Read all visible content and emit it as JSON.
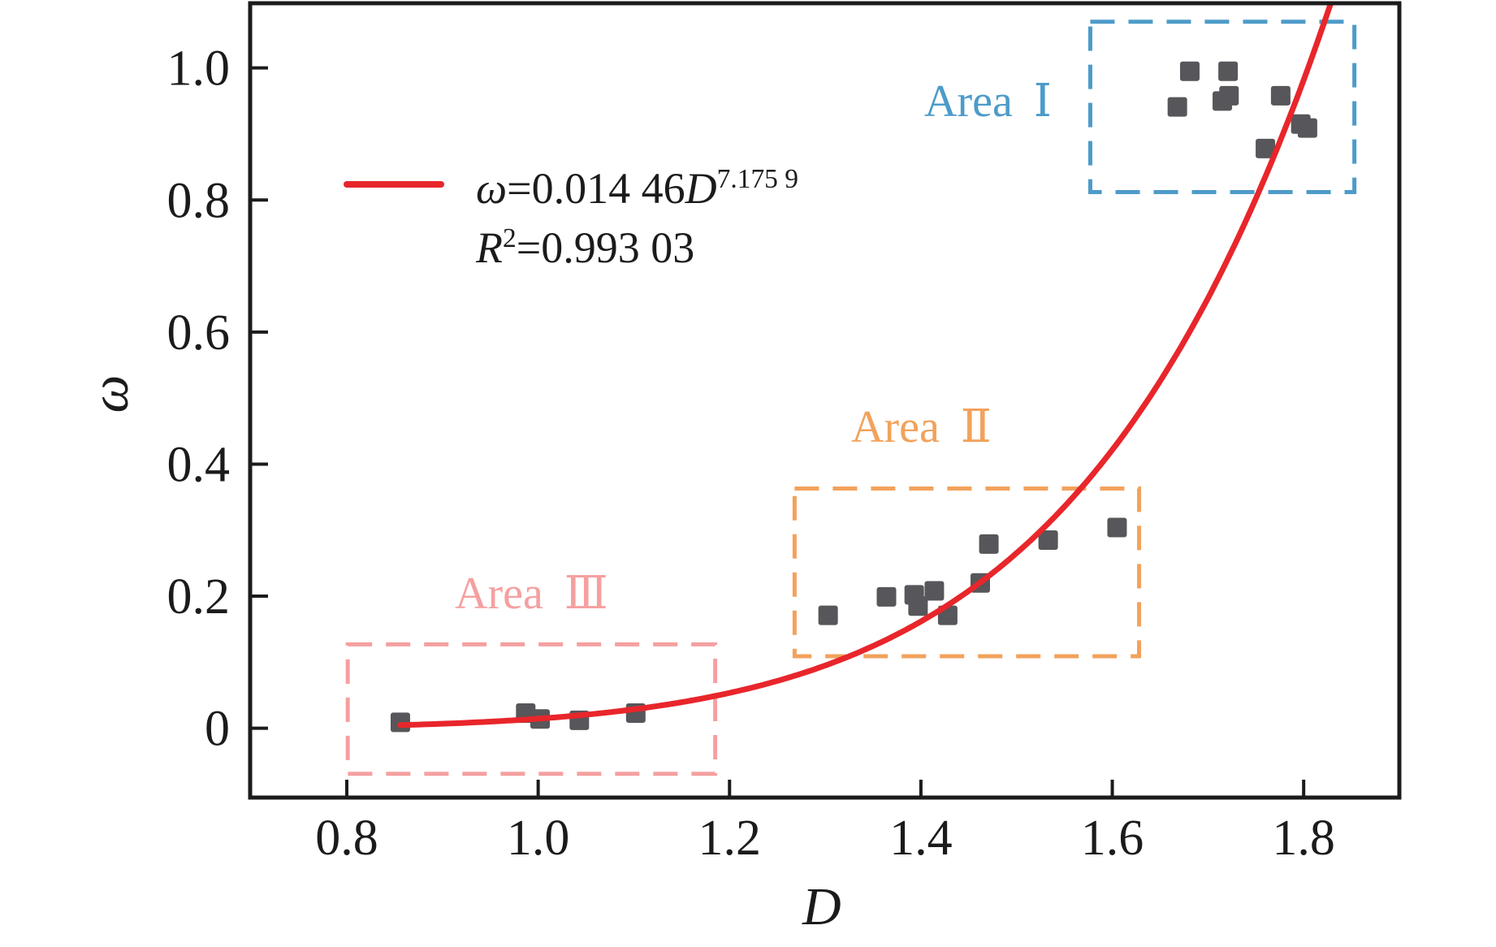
{
  "figure": {
    "background": "#ffffff",
    "frame_color": "#1b1b1b",
    "text_color": "#1b1b1b"
  },
  "legend": {
    "swatch_color": "#e8262b",
    "omega_symbol": "ω",
    "equation_mid": "=0.014 46",
    "d_symbol": "D",
    "equation_exponent": "7.175 9",
    "r_symbol": "R",
    "r_superscript": "2",
    "r_value": "=0.993 03"
  },
  "axis_titles": {
    "x": "D",
    "y": "ω"
  },
  "area_labels": [
    {
      "label": "Area Ⅰ",
      "color": "#4d9bc9"
    },
    {
      "label": "Area Ⅱ",
      "color": "#f2a25c"
    },
    {
      "label": "Area Ⅲ",
      "color": "#f5a0a0"
    }
  ],
  "chart_data": {
    "type": "scatter",
    "title": "",
    "xlabel": "D",
    "ylabel": "ω",
    "xlim": [
      0.699,
      1.9
    ],
    "ylim": [
      -0.105,
      1.098
    ],
    "xticks": [
      0.8,
      1.0,
      1.2,
      1.4,
      1.6,
      1.8
    ],
    "xtick_labels": [
      "0.8",
      "1.0",
      "1.2",
      "1.4",
      "1.6",
      "1.8"
    ],
    "yticks": [
      0,
      0.2,
      0.4,
      0.6,
      0.8,
      1.0
    ],
    "ytick_labels": [
      "0",
      "0.2",
      "0.4",
      "0.6",
      "0.8",
      "1.0"
    ],
    "grid": false,
    "legend_position": "upper-left-inside",
    "marker": {
      "shape": "square",
      "color": "#57565a",
      "size": 24
    },
    "fit_curve": {
      "type": "power",
      "coefficient": 0.01446,
      "exponent": 7.1759,
      "equation": "ω=0.014 46D^(7.175 9)",
      "r_squared": 0.99303,
      "color": "#e8262b",
      "domain": [
        0.856,
        1.84
      ]
    },
    "series": [
      {
        "name": "Area Ⅰ",
        "box_color": "#4d9bc9",
        "box": {
          "x0": 1.577,
          "x1": 1.853,
          "y0": 0.812,
          "y1": 1.07
        },
        "points": [
          [
            1.681,
            0.995
          ],
          [
            1.721,
            0.995
          ],
          [
            1.715,
            0.95
          ],
          [
            1.722,
            0.958
          ],
          [
            1.668,
            0.941
          ],
          [
            1.776,
            0.958
          ],
          [
            1.797,
            0.915
          ],
          [
            1.804,
            0.909
          ],
          [
            1.76,
            0.878
          ]
        ]
      },
      {
        "name": "Area Ⅱ",
        "box_color": "#f2a25c",
        "box": {
          "x0": 1.268,
          "x1": 1.628,
          "y0": 0.109,
          "y1": 0.363
        },
        "points": [
          [
            1.303,
            0.171
          ],
          [
            1.364,
            0.199
          ],
          [
            1.393,
            0.202
          ],
          [
            1.397,
            0.185
          ],
          [
            1.414,
            0.208
          ],
          [
            1.428,
            0.171
          ],
          [
            1.462,
            0.22
          ],
          [
            1.471,
            0.279
          ],
          [
            1.533,
            0.285
          ],
          [
            1.605,
            0.304
          ]
        ]
      },
      {
        "name": "Area Ⅲ",
        "box_color": "#f5a0a0",
        "box": {
          "x0": 0.801,
          "x1": 1.185,
          "y0": -0.069,
          "y1": 0.127
        },
        "points": [
          [
            0.856,
            0.009
          ],
          [
            0.987,
            0.023
          ],
          [
            1.002,
            0.014
          ],
          [
            1.043,
            0.012
          ],
          [
            1.102,
            0.023
          ]
        ]
      }
    ]
  }
}
